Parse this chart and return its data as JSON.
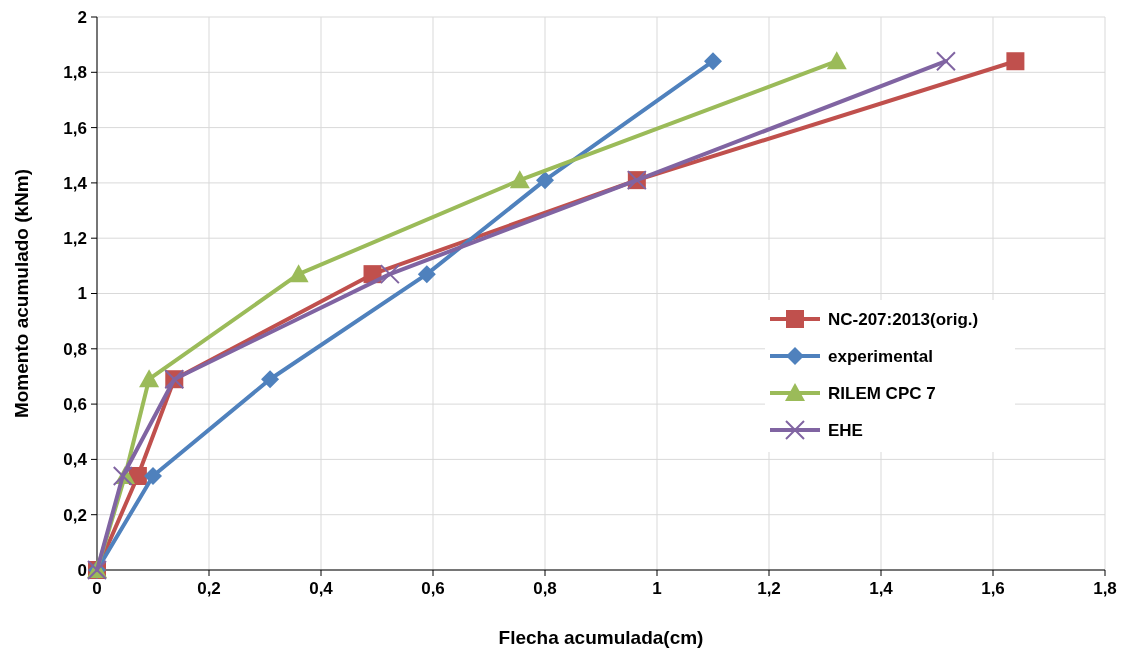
{
  "chart_data": {
    "type": "line",
    "xlabel": "Flecha acumulada(cm)",
    "ylabel": "Momento acumulado (kNm)",
    "xlim": [
      0,
      1.8
    ],
    "ylim": [
      0,
      2
    ],
    "xticks": [
      0,
      {
        "value": 0.2,
        "label": "0,2"
      },
      {
        "value": 0.4,
        "label": "0,4"
      },
      {
        "value": 0.6,
        "label": "0,6"
      },
      {
        "value": 0.8,
        "label": "0,8"
      },
      1,
      {
        "value": 1.2,
        "label": "1,2"
      },
      {
        "value": 1.4,
        "label": "1,4"
      },
      {
        "value": 1.6,
        "label": "1,6"
      },
      {
        "value": 1.8,
        "label": "1,8"
      }
    ],
    "yticks": [
      0,
      {
        "value": 0.2,
        "label": "0,2"
      },
      {
        "value": 0.4,
        "label": "0,4"
      },
      {
        "value": 0.6,
        "label": "0,6"
      },
      {
        "value": 0.8,
        "label": "0,8"
      },
      1,
      {
        "value": 1.2,
        "label": "1,2"
      },
      {
        "value": 1.4,
        "label": "1,4"
      },
      {
        "value": 1.6,
        "label": "1,6"
      },
      {
        "value": 1.8,
        "label": "1,8"
      },
      2
    ],
    "grid": true,
    "legend": "right",
    "line_style": "solid",
    "series": [
      {
        "name": "NC-207:2013(orig.)",
        "color": "#c0504d",
        "marker": "square",
        "x": [
          0,
          0.073,
          0.138,
          0.492,
          0.964,
          1.64
        ],
        "values": [
          0,
          0.34,
          0.69,
          1.07,
          1.41,
          1.84
        ]
      },
      {
        "name": "experimental",
        "color": "#4f81bd",
        "marker": "diamond",
        "x": [
          0,
          0.1,
          0.309,
          0.589,
          0.8,
          1.1
        ],
        "values": [
          0,
          0.34,
          0.69,
          1.07,
          1.41,
          1.84
        ]
      },
      {
        "name": "RILEM CPC 7",
        "color": "#9bbb59",
        "marker": "triangle",
        "x": [
          0,
          0.05,
          0.093,
          0.36,
          0.755,
          1.321
        ],
        "values": [
          0,
          0.34,
          0.69,
          1.07,
          1.41,
          1.84
        ]
      },
      {
        "name": "EHE",
        "color": "#8064a2",
        "marker": "cross",
        "x": [
          0,
          0.046,
          0.138,
          0.523,
          0.964,
          1.516
        ],
        "values": [
          0,
          0.34,
          0.69,
          1.07,
          1.41,
          1.84
        ]
      }
    ]
  }
}
